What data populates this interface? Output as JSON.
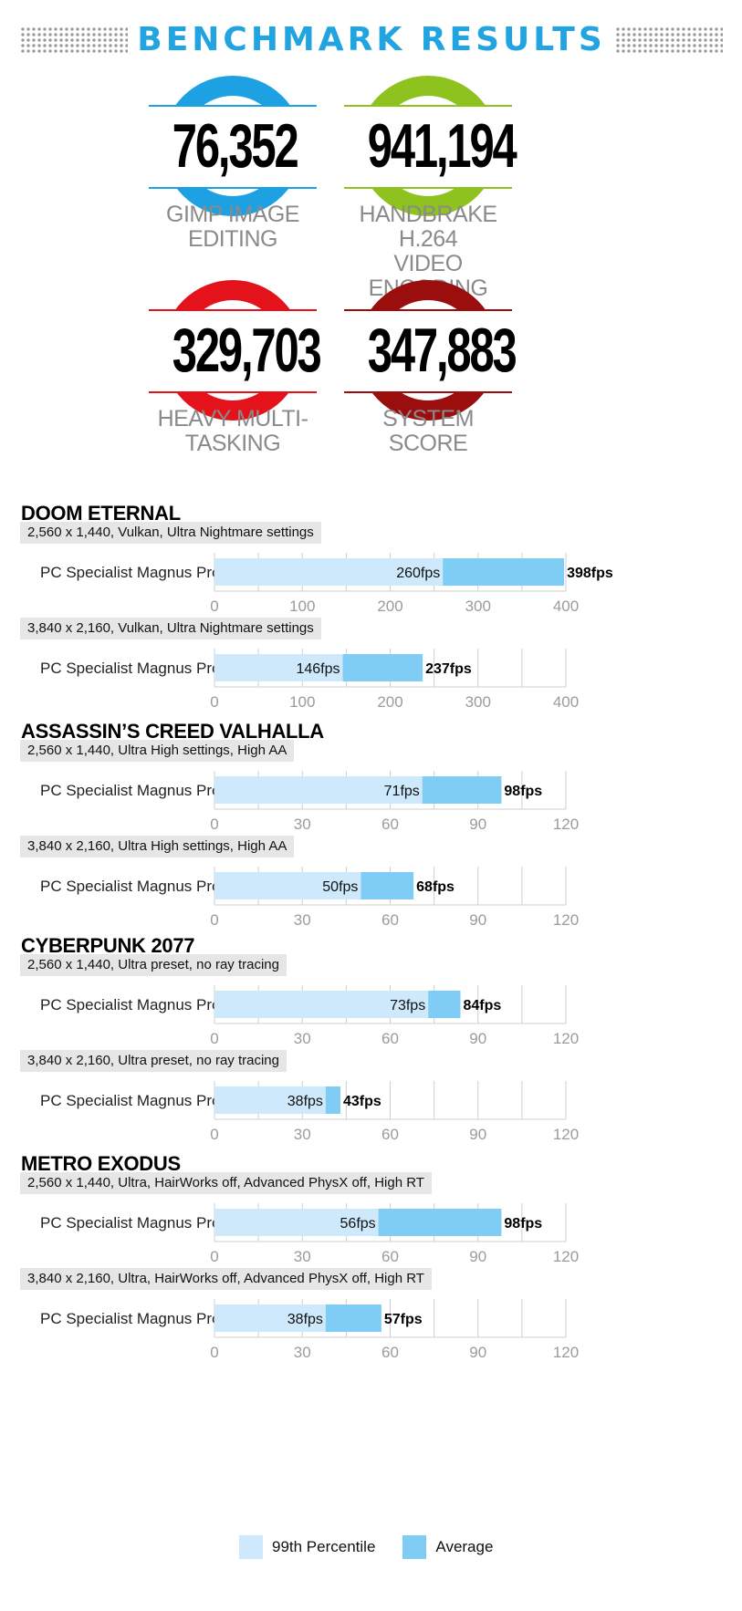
{
  "header": {
    "title": "BENCHMARK RESULTS"
  },
  "scores": [
    {
      "value": "76,352",
      "label_lines": [
        "GIMP IMAGE",
        "EDITING"
      ],
      "color": "#1da1e2"
    },
    {
      "value": "941,194",
      "label_lines": [
        "HANDBRAKE H.264",
        "VIDEO ENCODING"
      ],
      "color": "#8dc21f"
    },
    {
      "value": "329,703",
      "label_lines": [
        "HEAVY MULTI-",
        "TASKING"
      ],
      "color": "#e3121b"
    },
    {
      "value": "347,883",
      "label_lines": [
        "SYSTEM",
        "SCORE"
      ],
      "color": "#9a0e0e"
    }
  ],
  "colors": {
    "percentile": "#cde9fb",
    "average": "#7fcdf4",
    "grid": "#cfcfcf",
    "tick": "#9b9b9b"
  },
  "legend": {
    "percentile": "99th Percentile",
    "average": "Average"
  },
  "chart_data": [
    {
      "type": "bar",
      "game": "DOOM ETERNAL",
      "condition": "2,560 x 1,440, Vulkan, Ultra Nightmare settings",
      "categories": [
        "PC Specialist Magnus Pro"
      ],
      "series": [
        {
          "name": "99th Percentile",
          "values": [
            260
          ]
        },
        {
          "name": "Average",
          "values": [
            398
          ]
        }
      ],
      "value_labels": {
        "percentile": "260fps",
        "average": "398fps"
      },
      "xlim": [
        0,
        400
      ],
      "ticks": [
        "0",
        "100",
        "200",
        "300",
        "400"
      ],
      "grid": true
    },
    {
      "type": "bar",
      "condition": "3,840 x 2,160, Vulkan, Ultra Nightmare settings",
      "categories": [
        "PC Specialist Magnus Pro"
      ],
      "series": [
        {
          "name": "99th Percentile",
          "values": [
            146
          ]
        },
        {
          "name": "Average",
          "values": [
            237
          ]
        }
      ],
      "value_labels": {
        "percentile": "146fps",
        "average": "237fps"
      },
      "xlim": [
        0,
        400
      ],
      "ticks": [
        "0",
        "100",
        "200",
        "300",
        "400"
      ],
      "grid": true
    },
    {
      "type": "bar",
      "game": "ASSASSIN’S CREED VALHALLA",
      "condition": "2,560 x 1,440, Ultra High settings, High AA",
      "categories": [
        "PC Specialist Magnus Pro"
      ],
      "series": [
        {
          "name": "99th Percentile",
          "values": [
            71
          ]
        },
        {
          "name": "Average",
          "values": [
            98
          ]
        }
      ],
      "value_labels": {
        "percentile": "71fps",
        "average": "98fps"
      },
      "xlim": [
        0,
        120
      ],
      "ticks": [
        "0",
        "30",
        "60",
        "90",
        "120"
      ],
      "grid": true
    },
    {
      "type": "bar",
      "condition": "3,840 x 2,160, Ultra High settings, High AA",
      "categories": [
        "PC Specialist Magnus Pro"
      ],
      "series": [
        {
          "name": "99th Percentile",
          "values": [
            50
          ]
        },
        {
          "name": "Average",
          "values": [
            68
          ]
        }
      ],
      "value_labels": {
        "percentile": "50fps",
        "average": "68fps"
      },
      "xlim": [
        0,
        120
      ],
      "ticks": [
        "0",
        "30",
        "60",
        "90",
        "120"
      ],
      "grid": true
    },
    {
      "type": "bar",
      "game": "CYBERPUNK 2077",
      "condition": "2,560 x 1,440, Ultra preset, no ray tracing",
      "categories": [
        "PC Specialist Magnus Pro"
      ],
      "series": [
        {
          "name": "99th Percentile",
          "values": [
            73
          ]
        },
        {
          "name": "Average",
          "values": [
            84
          ]
        }
      ],
      "value_labels": {
        "percentile": "73fps",
        "average": "84fps"
      },
      "xlim": [
        0,
        120
      ],
      "ticks": [
        "0",
        "30",
        "60",
        "90",
        "120"
      ],
      "grid": true
    },
    {
      "type": "bar",
      "condition": "3,840 x 2,160, Ultra preset, no ray tracing",
      "categories": [
        "PC Specialist Magnus Pro"
      ],
      "series": [
        {
          "name": "99th Percentile",
          "values": [
            38
          ]
        },
        {
          "name": "Average",
          "values": [
            43
          ]
        }
      ],
      "value_labels": {
        "percentile": "38fps",
        "average": "43fps"
      },
      "xlim": [
        0,
        120
      ],
      "ticks": [
        "0",
        "30",
        "60",
        "90",
        "120"
      ],
      "grid": true
    },
    {
      "type": "bar",
      "game": "METRO EXODUS",
      "condition": "2,560 x 1,440, Ultra, HairWorks off, Advanced PhysX off, High RT",
      "categories": [
        "PC Specialist Magnus Pro"
      ],
      "series": [
        {
          "name": "99th Percentile",
          "values": [
            56
          ]
        },
        {
          "name": "Average",
          "values": [
            98
          ]
        }
      ],
      "value_labels": {
        "percentile": "56fps",
        "average": "98fps"
      },
      "xlim": [
        0,
        120
      ],
      "ticks": [
        "0",
        "30",
        "60",
        "90",
        "120"
      ],
      "grid": true
    },
    {
      "type": "bar",
      "condition": "3,840 x 2,160, Ultra, HairWorks off, Advanced PhysX off, High RT",
      "categories": [
        "PC Specialist Magnus Pro"
      ],
      "series": [
        {
          "name": "99th Percentile",
          "values": [
            38
          ]
        },
        {
          "name": "Average",
          "values": [
            57
          ]
        }
      ],
      "value_labels": {
        "percentile": "38fps",
        "average": "57fps"
      },
      "xlim": [
        0,
        120
      ],
      "ticks": [
        "0",
        "30",
        "60",
        "90",
        "120"
      ],
      "grid": true
    }
  ]
}
